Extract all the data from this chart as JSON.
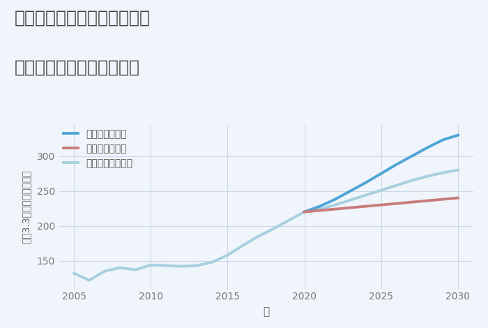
{
  "title_line1": "神奈川県横浜市中区大芝台の",
  "title_line2": "中古マンションの価格推移",
  "xlabel": "年",
  "ylabel": "坪（3.3㎡）単価（万円）",
  "xlim": [
    2004,
    2031
  ],
  "ylim": [
    110,
    345
  ],
  "yticks": [
    150,
    200,
    250,
    300
  ],
  "xticks": [
    2005,
    2010,
    2015,
    2020,
    2025,
    2030
  ],
  "bg_color": "#f0f5fb",
  "grid_color": "#ccd8ea",
  "legend": [
    "グッドシナリオ",
    "バッドシナリオ",
    "ノーマルシナリオ"
  ],
  "good_color": "#4da6d6",
  "bad_color": "#c97b7b",
  "normal_color": "#a8cfe0",
  "historical_x": [
    2005,
    2006,
    2007,
    2008,
    2009,
    2010,
    2011,
    2012,
    2013,
    2014,
    2015,
    2016,
    2017,
    2018,
    2019,
    2020
  ],
  "historical_y": [
    132,
    122,
    135,
    140,
    137,
    144,
    143,
    142,
    143,
    148,
    158,
    172,
    185,
    196,
    208,
    220
  ],
  "good_x": [
    2020,
    2021,
    2022,
    2023,
    2024,
    2025,
    2026,
    2027,
    2028,
    2029,
    2030
  ],
  "good_y": [
    220,
    228,
    238,
    250,
    262,
    275,
    288,
    300,
    312,
    323,
    330
  ],
  "bad_x": [
    2020,
    2021,
    2022,
    2023,
    2024,
    2025,
    2026,
    2027,
    2028,
    2029,
    2030
  ],
  "bad_y": [
    220,
    222,
    224,
    226,
    228,
    230,
    232,
    234,
    236,
    238,
    240
  ],
  "normal_x": [
    2020,
    2021,
    2022,
    2023,
    2024,
    2025,
    2026,
    2027,
    2028,
    2029,
    2030
  ],
  "normal_y": [
    220,
    224,
    230,
    237,
    244,
    251,
    258,
    265,
    271,
    276,
    280
  ],
  "title_fontsize": 18,
  "axis_fontsize": 10,
  "legend_fontsize": 10,
  "linewidth": 2.8
}
